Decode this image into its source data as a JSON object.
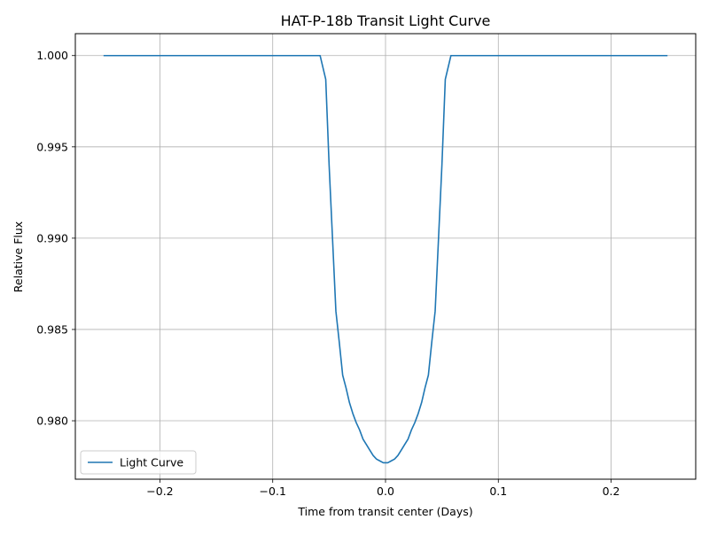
{
  "chart_data": {
    "type": "line",
    "title": "HAT-P-18b Transit Light Curve",
    "xlabel": "Time from transit center (Days)",
    "ylabel": "Relative Flux",
    "xlim": [
      -0.275,
      0.275
    ],
    "ylim": [
      0.9768,
      1.0012
    ],
    "grid": true,
    "legend_position": "lower-left",
    "x_ticks": [
      -0.2,
      -0.1,
      0.0,
      0.1,
      0.2
    ],
    "x_tick_labels": [
      "−0.2",
      "−0.1",
      "0.0",
      "0.1",
      "0.2"
    ],
    "y_ticks": [
      0.98,
      0.985,
      0.99,
      0.995,
      1.0
    ],
    "y_tick_labels": [
      "0.980",
      "0.985",
      "0.990",
      "0.995",
      "1.000"
    ],
    "series": [
      {
        "name": "Light Curve",
        "color": "#1f77b4",
        "x": [
          -0.25,
          -0.058,
          -0.053,
          -0.05,
          -0.047,
          -0.044,
          -0.041,
          -0.038,
          -0.035,
          -0.032,
          -0.029,
          -0.026,
          -0.023,
          -0.02,
          -0.017,
          -0.014,
          -0.011,
          -0.008,
          -0.005,
          -0.002,
          0.0,
          0.002,
          0.005,
          0.008,
          0.011,
          0.014,
          0.017,
          0.02,
          0.023,
          0.026,
          0.029,
          0.032,
          0.035,
          0.038,
          0.041,
          0.044,
          0.047,
          0.05,
          0.053,
          0.058,
          0.25
        ],
        "y": [
          1.0,
          1.0,
          0.9987,
          0.994,
          0.99,
          0.986,
          0.9843,
          0.9825,
          0.9818,
          0.981,
          0.9804,
          0.9799,
          0.9795,
          0.979,
          0.9787,
          0.9784,
          0.9781,
          0.9779,
          0.9778,
          0.9777,
          0.9777,
          0.9777,
          0.9778,
          0.9779,
          0.9781,
          0.9784,
          0.9787,
          0.979,
          0.9795,
          0.9799,
          0.9804,
          0.981,
          0.9818,
          0.9825,
          0.9843,
          0.986,
          0.99,
          0.994,
          0.9987,
          1.0,
          1.0
        ]
      }
    ]
  }
}
